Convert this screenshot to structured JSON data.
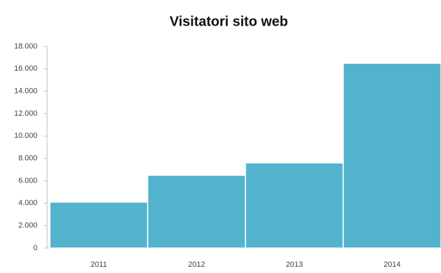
{
  "chart_data": {
    "type": "bar",
    "title": "Visitatori sito web",
    "categories": [
      "2011",
      "2012",
      "2013",
      "2014"
    ],
    "values": [
      4100,
      6500,
      7600,
      16500
    ],
    "color": "#53b3cd",
    "ylim": [
      0,
      18000
    ],
    "yticks": [
      0,
      {
        "value": 2000,
        "label": "2.000"
      },
      {
        "value": 4000,
        "label": "4.000"
      },
      {
        "value": 6000,
        "label": "6.000"
      },
      {
        "value": 8000,
        "label": "8.000"
      },
      {
        "value": 10000,
        "label": "10.000"
      },
      {
        "value": 12000,
        "label": "12.000"
      },
      {
        "value": 14000,
        "label": "14.000"
      },
      {
        "value": 16000,
        "label": "16.000"
      },
      {
        "value": 18000,
        "label": "18.000"
      }
    ],
    "grid": false
  }
}
